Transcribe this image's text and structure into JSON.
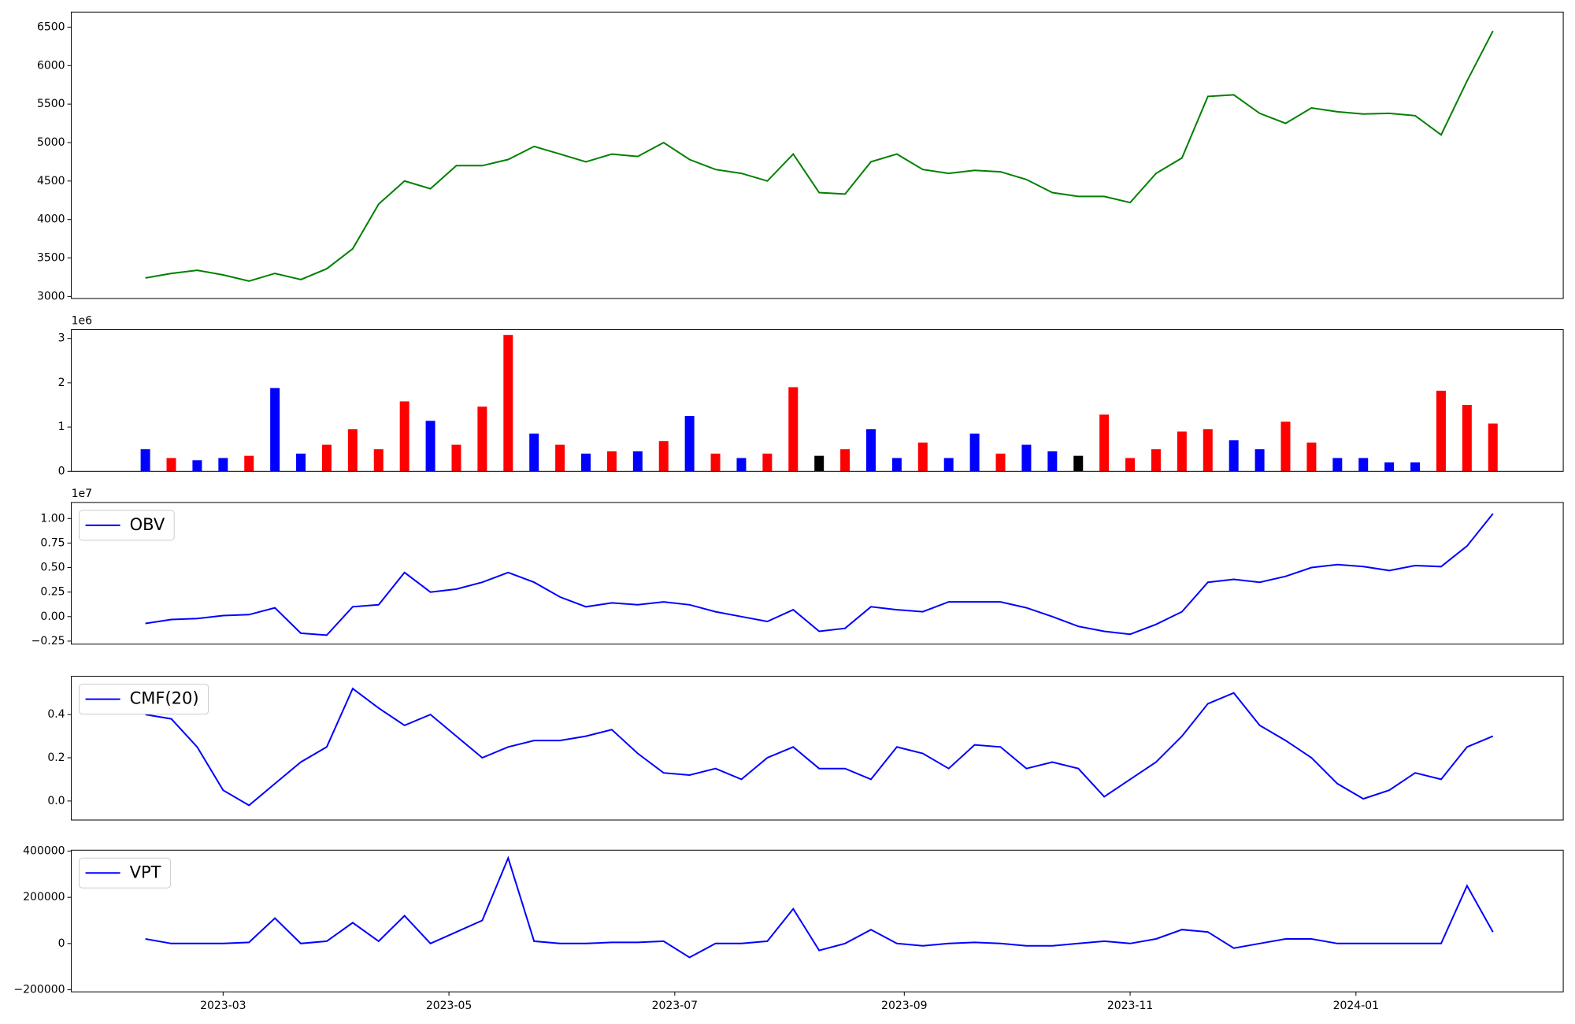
{
  "chart_data": [
    {
      "type": "line",
      "color": "#008000",
      "x": [
        "2023-02-08",
        "2023-02-15",
        "2023-02-22",
        "2023-03-01",
        "2023-03-08",
        "2023-03-15",
        "2023-03-22",
        "2023-03-29",
        "2023-04-05",
        "2023-04-12",
        "2023-04-19",
        "2023-04-26",
        "2023-05-03",
        "2023-05-10",
        "2023-05-17",
        "2023-05-24",
        "2023-05-31",
        "2023-06-07",
        "2023-06-14",
        "2023-06-21",
        "2023-06-28",
        "2023-07-05",
        "2023-07-12",
        "2023-07-19",
        "2023-07-26",
        "2023-08-02",
        "2023-08-09",
        "2023-08-16",
        "2023-08-23",
        "2023-08-30",
        "2023-09-06",
        "2023-09-13",
        "2023-09-20",
        "2023-09-27",
        "2023-10-04",
        "2023-10-11",
        "2023-10-18",
        "2023-10-25",
        "2023-11-01",
        "2023-11-08",
        "2023-11-15",
        "2023-11-22",
        "2023-11-29",
        "2023-12-06",
        "2023-12-13",
        "2023-12-20",
        "2023-12-27",
        "2024-01-03",
        "2024-01-10",
        "2024-01-17",
        "2024-01-24",
        "2024-01-31",
        "2024-02-07"
      ],
      "values": [
        3240,
        3300,
        3340,
        3280,
        3200,
        3300,
        3220,
        3360,
        3620,
        4200,
        4500,
        4400,
        4700,
        4700,
        4780,
        4950,
        4850,
        4750,
        4850,
        4820,
        5000,
        4780,
        4650,
        4600,
        4500,
        4850,
        4350,
        4330,
        4750,
        4850,
        4650,
        4600,
        4640,
        4620,
        4520,
        4350,
        4300,
        4300,
        4220,
        4600,
        4800,
        5600,
        5620,
        5380,
        5250,
        5450,
        5400,
        5370,
        5380,
        5350,
        5100,
        5800,
        6450
      ],
      "xlim": [
        "2023-01-19",
        "2024-02-26"
      ],
      "ylim": [
        2974,
        6696
      ],
      "yticks": [
        3000,
        3500,
        4000,
        4500,
        5000,
        5500,
        6000,
        6500
      ]
    },
    {
      "type": "bar",
      "offset_text": "1e6",
      "x": [
        "2023-02-08",
        "2023-02-15",
        "2023-02-22",
        "2023-03-01",
        "2023-03-08",
        "2023-03-15",
        "2023-03-22",
        "2023-03-29",
        "2023-04-05",
        "2023-04-12",
        "2023-04-19",
        "2023-04-26",
        "2023-05-03",
        "2023-05-10",
        "2023-05-17",
        "2023-05-24",
        "2023-05-31",
        "2023-06-07",
        "2023-06-14",
        "2023-06-21",
        "2023-06-28",
        "2023-07-05",
        "2023-07-12",
        "2023-07-19",
        "2023-07-26",
        "2023-08-02",
        "2023-08-09",
        "2023-08-16",
        "2023-08-23",
        "2023-08-30",
        "2023-09-06",
        "2023-09-13",
        "2023-09-20",
        "2023-09-27",
        "2023-10-04",
        "2023-10-11",
        "2023-10-18",
        "2023-10-25",
        "2023-11-01",
        "2023-11-08",
        "2023-11-15",
        "2023-11-22",
        "2023-11-29",
        "2023-12-06",
        "2023-12-13",
        "2023-12-20",
        "2023-12-27",
        "2024-01-03",
        "2024-01-10",
        "2024-01-17",
        "2024-01-24",
        "2024-01-31",
        "2024-02-07"
      ],
      "values": [
        500000,
        300000,
        250000,
        300000,
        350000,
        1880000,
        400000,
        600000,
        950000,
        500000,
        1580000,
        1140000,
        600000,
        1460000,
        3080000,
        850000,
        600000,
        400000,
        450000,
        450000,
        680000,
        1250000,
        400000,
        300000,
        400000,
        1900000,
        350000,
        500000,
        950000,
        300000,
        650000,
        300000,
        850000,
        400000,
        600000,
        450000,
        350000,
        1280000,
        300000,
        500000,
        900000,
        950000,
        700000,
        500000,
        1120000,
        650000,
        300000,
        300000,
        200000,
        200000,
        1820000,
        1500000,
        1080000
      ],
      "colors": [
        "blue",
        "red",
        "blue",
        "blue",
        "red",
        "blue",
        "blue",
        "red",
        "red",
        "red",
        "red",
        "blue",
        "red",
        "red",
        "red",
        "blue",
        "red",
        "blue",
        "red",
        "blue",
        "red",
        "blue",
        "red",
        "blue",
        "red",
        "red",
        "black",
        "red",
        "blue",
        "blue",
        "red",
        "blue",
        "blue",
        "red",
        "blue",
        "blue",
        "black",
        "red",
        "red",
        "red",
        "red",
        "red",
        "blue",
        "blue",
        "red",
        "red",
        "blue",
        "blue",
        "blue",
        "blue",
        "red",
        "red",
        "red"
      ],
      "xlim": [
        "2023-01-19",
        "2024-02-26"
      ],
      "ylim": [
        0,
        3200000
      ],
      "yticks": [
        {
          "value": 0,
          "label": "0"
        },
        {
          "value": 1000000,
          "label": "1"
        },
        {
          "value": 2000000,
          "label": "2"
        },
        {
          "value": 3000000,
          "label": "3"
        }
      ]
    },
    {
      "type": "line",
      "offset_text": "1e7",
      "legend": "upper left",
      "x": [
        "2023-02-08",
        "2023-02-15",
        "2023-02-22",
        "2023-03-01",
        "2023-03-08",
        "2023-03-15",
        "2023-03-22",
        "2023-03-29",
        "2023-04-05",
        "2023-04-12",
        "2023-04-19",
        "2023-04-26",
        "2023-05-03",
        "2023-05-10",
        "2023-05-17",
        "2023-05-24",
        "2023-05-31",
        "2023-06-07",
        "2023-06-14",
        "2023-06-21",
        "2023-06-28",
        "2023-07-05",
        "2023-07-12",
        "2023-07-19",
        "2023-07-26",
        "2023-08-02",
        "2023-08-09",
        "2023-08-16",
        "2023-08-23",
        "2023-08-30",
        "2023-09-06",
        "2023-09-13",
        "2023-09-20",
        "2023-09-27",
        "2023-10-04",
        "2023-10-11",
        "2023-10-18",
        "2023-10-25",
        "2023-11-01",
        "2023-11-08",
        "2023-11-15",
        "2023-11-22",
        "2023-11-29",
        "2023-12-06",
        "2023-12-13",
        "2023-12-20",
        "2023-12-27",
        "2024-01-03",
        "2024-01-10",
        "2024-01-17",
        "2024-01-24",
        "2024-01-31",
        "2024-02-07"
      ],
      "series": [
        {
          "name": "OBV",
          "color": "#0000ff",
          "values": [
            -700000,
            -300000,
            -200000,
            100000,
            200000,
            900000,
            -1700000,
            -1900000,
            1000000,
            1200000,
            4500000,
            2500000,
            2800000,
            3500000,
            4500000,
            3500000,
            2000000,
            1000000,
            1400000,
            1200000,
            1500000,
            1200000,
            500000,
            0,
            -500000,
            700000,
            -1500000,
            -1200000,
            1000000,
            700000,
            500000,
            1500000,
            1500000,
            1500000,
            900000,
            0,
            -1000000,
            -1500000,
            -1800000,
            -800000,
            500000,
            3500000,
            3800000,
            3500000,
            4100000,
            5000000,
            5300000,
            5100000,
            4700000,
            5200000,
            5100000,
            7200000,
            10500000
          ]
        }
      ],
      "xlim": [
        "2023-01-19",
        "2024-02-26"
      ],
      "ylim": [
        -2810000,
        11640000
      ],
      "yticks": [
        {
          "value": -2500000,
          "label": "−0.25"
        },
        {
          "value": 0,
          "label": "0.00"
        },
        {
          "value": 2500000,
          "label": "0.25"
        },
        {
          "value": 5000000,
          "label": "0.50"
        },
        {
          "value": 7500000,
          "label": "0.75"
        },
        {
          "value": 10000000,
          "label": "1.00"
        }
      ]
    },
    {
      "type": "line",
      "legend": "upper left",
      "x": [
        "2023-02-08",
        "2023-02-15",
        "2023-02-22",
        "2023-03-01",
        "2023-03-08",
        "2023-03-15",
        "2023-03-22",
        "2023-03-29",
        "2023-04-05",
        "2023-04-12",
        "2023-04-19",
        "2023-04-26",
        "2023-05-03",
        "2023-05-10",
        "2023-05-17",
        "2023-05-24",
        "2023-05-31",
        "2023-06-07",
        "2023-06-14",
        "2023-06-21",
        "2023-06-28",
        "2023-07-05",
        "2023-07-12",
        "2023-07-19",
        "2023-07-26",
        "2023-08-02",
        "2023-08-09",
        "2023-08-16",
        "2023-08-23",
        "2023-08-30",
        "2023-09-06",
        "2023-09-13",
        "2023-09-20",
        "2023-09-27",
        "2023-10-04",
        "2023-10-11",
        "2023-10-18",
        "2023-10-25",
        "2023-11-01",
        "2023-11-08",
        "2023-11-15",
        "2023-11-22",
        "2023-11-29",
        "2023-12-06",
        "2023-12-13",
        "2023-12-20",
        "2023-12-27",
        "2024-01-03",
        "2024-01-10",
        "2024-01-17",
        "2024-01-24",
        "2024-01-31",
        "2024-02-07"
      ],
      "series": [
        {
          "name": "CMF(20)",
          "color": "#0000ff",
          "values": [
            0.4,
            0.38,
            0.25,
            0.05,
            -0.02,
            0.08,
            0.18,
            0.25,
            0.52,
            0.43,
            0.35,
            0.4,
            0.3,
            0.2,
            0.25,
            0.28,
            0.28,
            0.3,
            0.33,
            0.22,
            0.13,
            0.12,
            0.15,
            0.1,
            0.2,
            0.25,
            0.15,
            0.15,
            0.1,
            0.25,
            0.22,
            0.15,
            0.26,
            0.25,
            0.15,
            0.18,
            0.15,
            0.02,
            0.1,
            0.18,
            0.3,
            0.45,
            0.5,
            0.35,
            0.28,
            0.2,
            0.08,
            0.01,
            0.05,
            0.13,
            0.1,
            0.25,
            0.3
          ]
        }
      ],
      "xlim": [
        "2023-01-19",
        "2024-02-26"
      ],
      "ylim": [
        -0.088,
        0.577
      ],
      "yticks": [
        {
          "value": 0,
          "label": "0.0"
        },
        {
          "value": 0.2,
          "label": "0.2"
        },
        {
          "value": 0.4,
          "label": "0.4"
        }
      ]
    },
    {
      "type": "line",
      "legend": "upper left",
      "x": [
        "2023-02-08",
        "2023-02-15",
        "2023-02-22",
        "2023-03-01",
        "2023-03-08",
        "2023-03-15",
        "2023-03-22",
        "2023-03-29",
        "2023-04-05",
        "2023-04-12",
        "2023-04-19",
        "2023-04-26",
        "2023-05-03",
        "2023-05-10",
        "2023-05-17",
        "2023-05-24",
        "2023-05-31",
        "2023-06-07",
        "2023-06-14",
        "2023-06-21",
        "2023-06-28",
        "2023-07-05",
        "2023-07-12",
        "2023-07-19",
        "2023-07-26",
        "2023-08-02",
        "2023-08-09",
        "2023-08-16",
        "2023-08-23",
        "2023-08-30",
        "2023-09-06",
        "2023-09-13",
        "2023-09-20",
        "2023-09-27",
        "2023-10-04",
        "2023-10-11",
        "2023-10-18",
        "2023-10-25",
        "2023-11-01",
        "2023-11-08",
        "2023-11-15",
        "2023-11-22",
        "2023-11-29",
        "2023-12-06",
        "2023-12-13",
        "2023-12-20",
        "2023-12-27",
        "2024-01-03",
        "2024-01-10",
        "2024-01-17",
        "2024-01-24",
        "2024-01-31",
        "2024-02-07"
      ],
      "series": [
        {
          "name": "VPT",
          "color": "#0000ff",
          "values": [
            20000,
            0,
            0,
            0,
            5000,
            110000,
            0,
            10000,
            90000,
            10000,
            120000,
            0,
            50000,
            100000,
            370000,
            10000,
            0,
            0,
            5000,
            5000,
            10000,
            -60000,
            0,
            0,
            10000,
            150000,
            -30000,
            0,
            60000,
            0,
            -10000,
            0,
            5000,
            0,
            -10000,
            -10000,
            0,
            10000,
            0,
            20000,
            60000,
            50000,
            -20000,
            0,
            20000,
            20000,
            0,
            0,
            0,
            0,
            0,
            250000,
            50000
          ]
        }
      ],
      "xlim": [
        "2023-01-19",
        "2024-02-26"
      ],
      "ylim": [
        -209000,
        404000
      ],
      "yticks": [
        {
          "value": -200000,
          "label": "−200000"
        },
        0,
        200000,
        400000
      ],
      "xticks": [
        {
          "value": "2023-03-01",
          "label": "2023-03"
        },
        {
          "value": "2023-05-01",
          "label": "2023-05"
        },
        {
          "value": "2023-07-01",
          "label": "2023-07"
        },
        {
          "value": "2023-09-01",
          "label": "2023-09"
        },
        {
          "value": "2023-11-01",
          "label": "2023-11"
        },
        {
          "value": "2024-01-01",
          "label": "2024-01"
        }
      ]
    }
  ]
}
